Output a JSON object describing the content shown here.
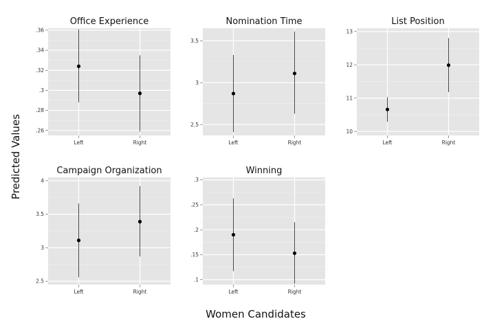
{
  "figure": {
    "ylabel": "Predicted Values",
    "xlabel": "Women Candidates"
  },
  "chart_data": [
    {
      "type": "scatter",
      "title": "Office Experience",
      "categories": [
        "Left",
        "Right"
      ],
      "yticks": [
        0.26,
        0.28,
        0.3,
        0.32,
        0.34,
        0.36
      ],
      "ytick_labels": [
        ".26",
        ".28",
        ".3",
        ".32",
        ".34",
        ".36"
      ],
      "ylim": [
        0.255,
        0.362
      ],
      "points": [
        {
          "x": "Left",
          "y": 0.324,
          "lower": 0.288,
          "upper": 0.361
        },
        {
          "x": "Right",
          "y": 0.297,
          "lower": 0.259,
          "upper": 0.335
        }
      ],
      "grid": true
    },
    {
      "type": "scatter",
      "title": "Nomination Time",
      "categories": [
        "Left",
        "Right"
      ],
      "yticks": [
        2.5,
        3,
        3.5
      ],
      "ytick_labels": [
        "2.5",
        "3",
        "3.5"
      ],
      "ylim": [
        2.37,
        3.65
      ],
      "points": [
        {
          "x": "Left",
          "y": 2.87,
          "lower": 2.41,
          "upper": 3.33
        },
        {
          "x": "Right",
          "y": 3.11,
          "lower": 2.63,
          "upper": 3.61
        }
      ],
      "grid": true
    },
    {
      "type": "scatter",
      "title": "List Position",
      "categories": [
        "Left",
        "Right"
      ],
      "yticks": [
        10,
        11,
        12,
        13
      ],
      "ytick_labels": [
        "10",
        "11",
        "12",
        "13"
      ],
      "ylim": [
        9.88,
        13.1
      ],
      "points": [
        {
          "x": "Left",
          "y": 10.66,
          "lower": 10.29,
          "upper": 11.03
        },
        {
          "x": "Right",
          "y": 11.99,
          "lower": 11.18,
          "upper": 12.8
        }
      ],
      "grid": true
    },
    {
      "type": "scatter",
      "title": "Campaign Organization",
      "categories": [
        "Left",
        "Right"
      ],
      "yticks": [
        2.5,
        3,
        3.5,
        4
      ],
      "ytick_labels": [
        "2.5",
        "3",
        "3.5",
        "4"
      ],
      "ylim": [
        2.45,
        4.05
      ],
      "points": [
        {
          "x": "Left",
          "y": 3.11,
          "lower": 2.56,
          "upper": 3.66
        },
        {
          "x": "Right",
          "y": 3.39,
          "lower": 2.87,
          "upper": 3.92
        }
      ],
      "grid": true
    },
    {
      "type": "scatter",
      "title": "Winning",
      "categories": [
        "Left",
        "Right"
      ],
      "yticks": [
        0.1,
        0.15,
        0.2,
        0.25,
        0.3
      ],
      "ytick_labels": [
        ".1",
        ".15",
        ".2",
        ".25",
        ".3"
      ],
      "ylim": [
        0.09,
        0.305
      ],
      "points": [
        {
          "x": "Left",
          "y": 0.19,
          "lower": 0.117,
          "upper": 0.263
        },
        {
          "x": "Right",
          "y": 0.153,
          "lower": 0.092,
          "upper": 0.215
        }
      ],
      "grid": true
    }
  ]
}
